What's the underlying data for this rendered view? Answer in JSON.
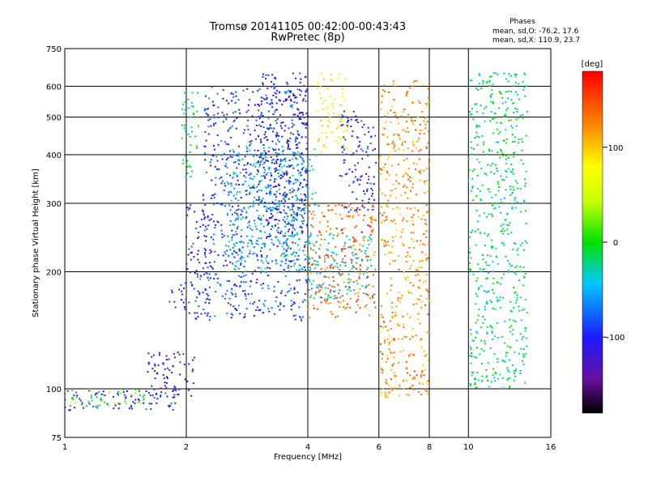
{
  "title": {
    "line1": "Tromsø 20141105 00:42:00-00:43:43",
    "line2": "RwPretec (8p)"
  },
  "phase_box": {
    "heading": "Phases",
    "line1": "mean, sd,O: -76.2, 17.6",
    "line2": "mean, sd,X: 110.9, 23.7"
  },
  "chart_data": {
    "type": "scatter",
    "title": "Tromsø 20141105 00:42:00-00:43:43",
    "subtitle": "RwPretec (8p)",
    "xlabel": "Frequency [MHz]",
    "ylabel": "Stationary phase Virtual Height [km]",
    "x_scale": "log",
    "y_scale": "log",
    "xlim": [
      1,
      16
    ],
    "ylim": [
      75,
      750
    ],
    "x_ticks": [
      1,
      2,
      4,
      6,
      8,
      10,
      16
    ],
    "y_ticks": [
      75,
      100,
      200,
      300,
      400,
      500,
      600,
      750
    ],
    "grid": true,
    "colorbar": {
      "label": "[deg]",
      "range": [
        -180,
        180
      ],
      "ticks": [
        100,
        0,
        -100
      ]
    },
    "clusters": [
      {
        "x": [
          1.0,
          1.95
        ],
        "y": [
          88,
          100
        ],
        "phase": -100
      },
      {
        "x": [
          1.6,
          2.1
        ],
        "y": [
          95,
          125
        ],
        "phase": -115
      },
      {
        "x": [
          1.0,
          1.6
        ],
        "y": [
          90,
          100
        ],
        "phase": 10
      },
      {
        "x": [
          1.8,
          2.0
        ],
        "y": [
          160,
          190
        ],
        "phase": -110
      },
      {
        "x": [
          1.95,
          2.15
        ],
        "y": [
          350,
          590
        ],
        "phase": -20
      },
      {
        "x": [
          2.0,
          2.3
        ],
        "y": [
          150,
          300
        ],
        "phase": -100
      },
      {
        "x": [
          2.2,
          4.0
        ],
        "y": [
          150,
          600
        ],
        "phase": -90
      },
      {
        "x": [
          2.5,
          4.2
        ],
        "y": [
          200,
          420
        ],
        "phase": -40
      },
      {
        "x": [
          3.0,
          4.0
        ],
        "y": [
          250,
          650
        ],
        "phase": -110
      },
      {
        "x": [
          4.0,
          5.9
        ],
        "y": [
          150,
          300
        ],
        "phase": 140
      },
      {
        "x": [
          4.0,
          5.8
        ],
        "y": [
          170,
          250
        ],
        "phase": -40
      },
      {
        "x": [
          4.2,
          5.0
        ],
        "y": [
          400,
          650
        ],
        "phase": 80
      },
      {
        "x": [
          4.8,
          5.9
        ],
        "y": [
          280,
          520
        ],
        "phase": -100
      },
      {
        "x": [
          6.0,
          8.0
        ],
        "y": [
          95,
          620
        ],
        "phase": 120
      },
      {
        "x": [
          10.0,
          14.0
        ],
        "y": [
          100,
          650
        ],
        "phase": -20
      }
    ]
  }
}
